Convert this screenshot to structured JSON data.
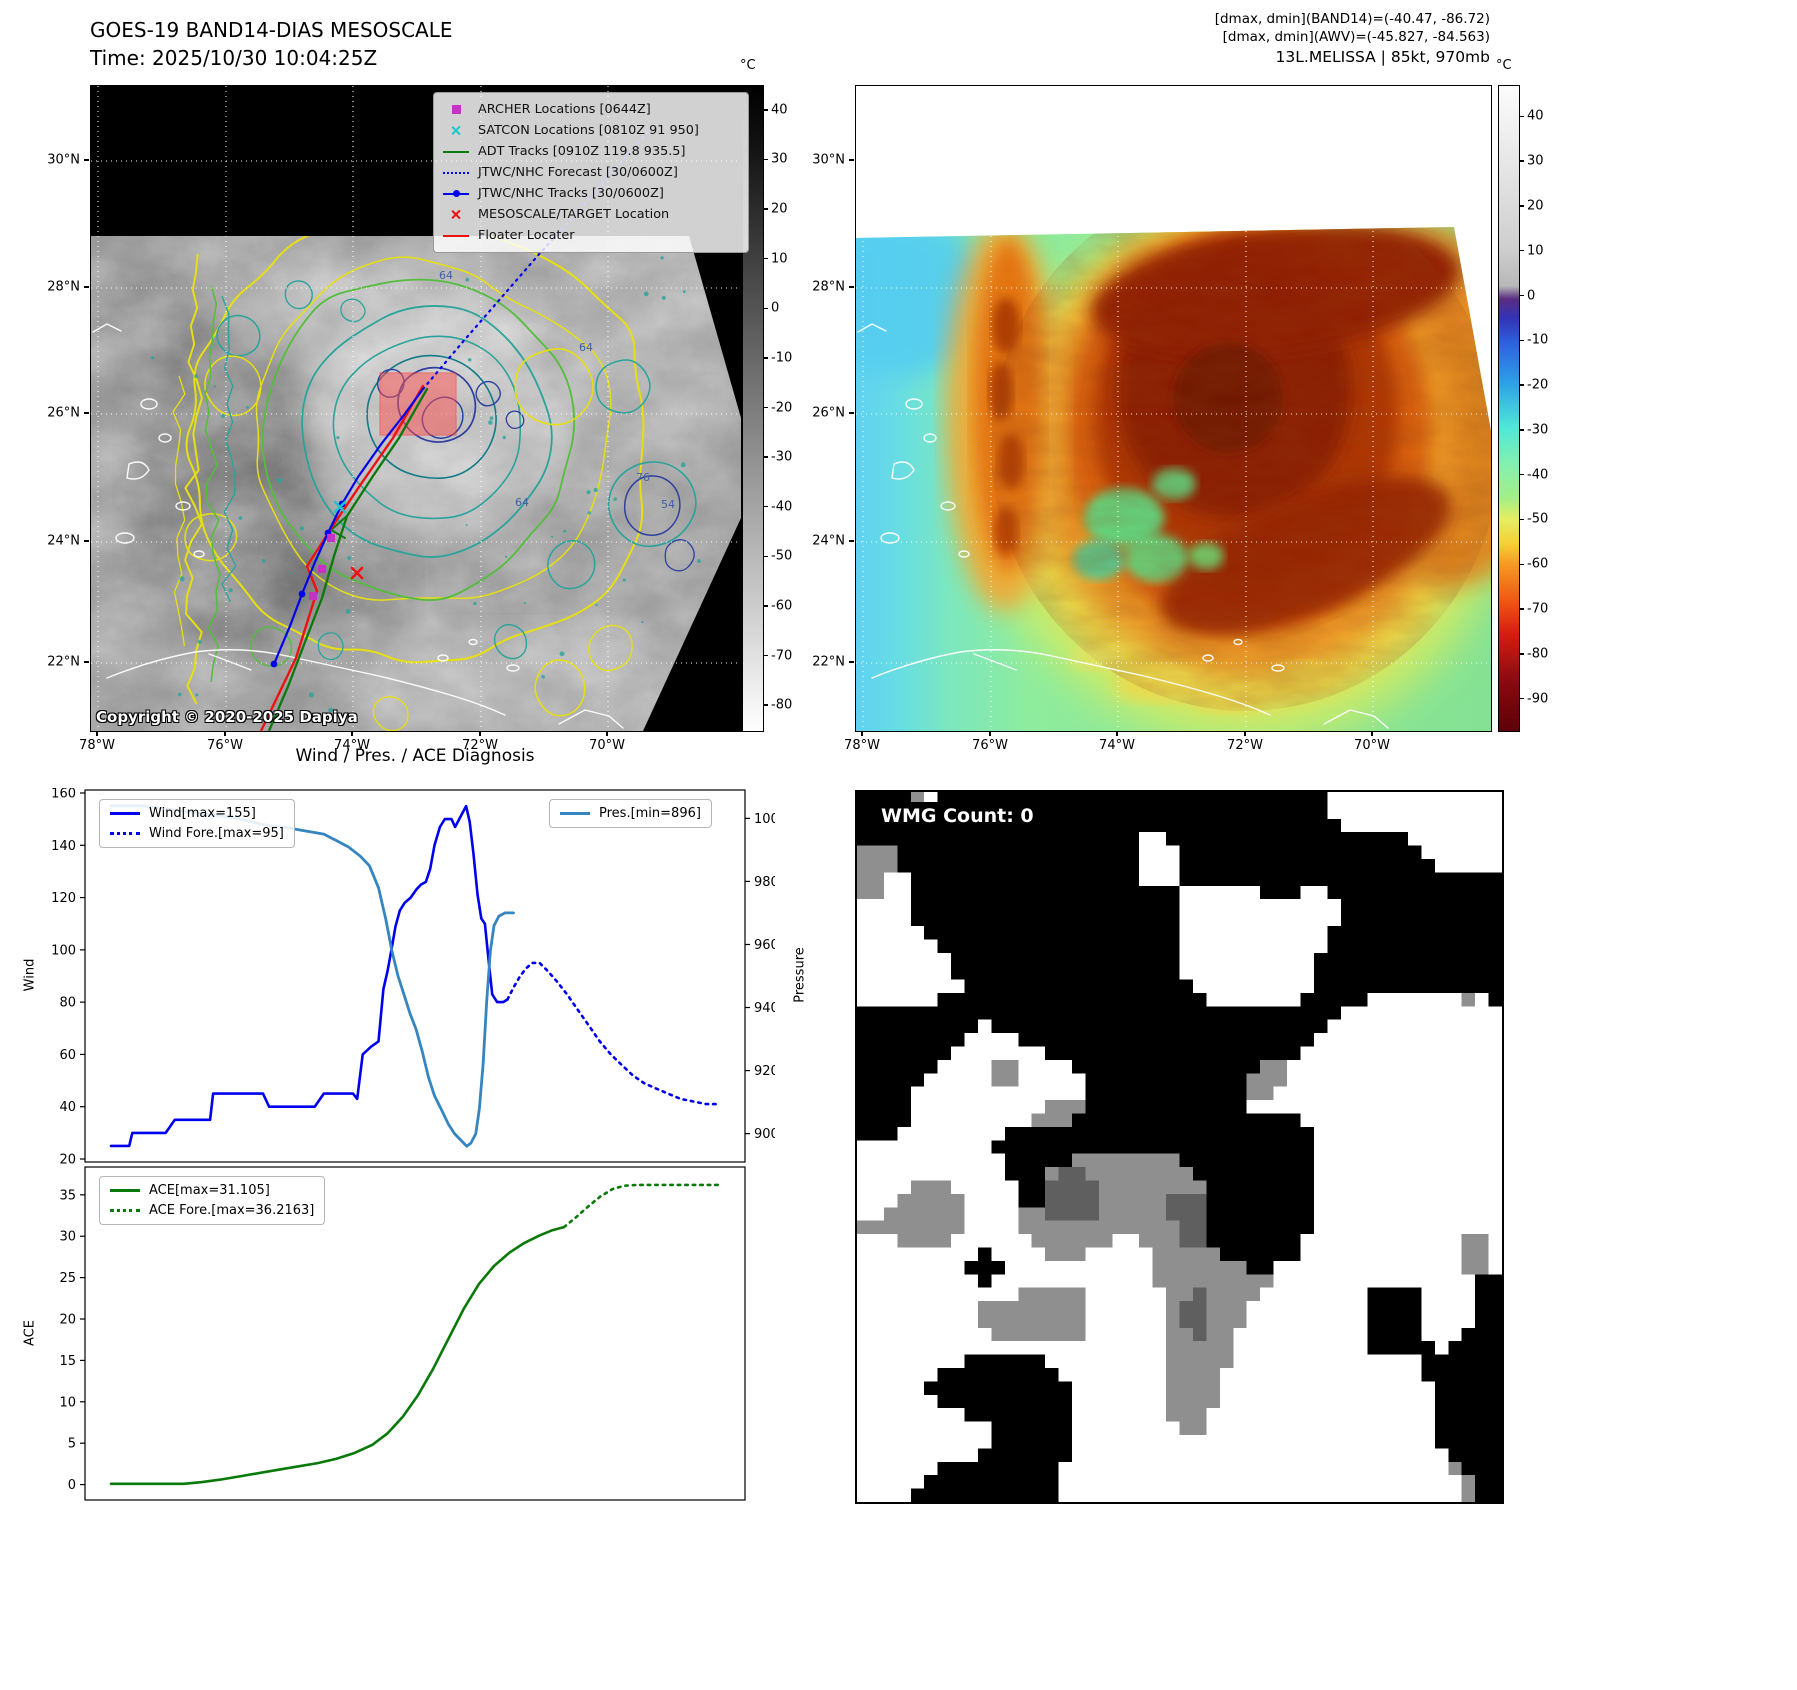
{
  "header": {
    "title_line1": "GOES-19 BAND14-DIAS MESOSCALE",
    "title_line2": "Time: 2025/10/30 10:04:25Z",
    "info_line1": "[dmax, dmin](BAND14)=(-40.47, -86.72)",
    "info_line2": "[dmax, dmin](AWV)=(-45.827, -84.563)",
    "info_line3": "13L.MELISSA | 85kt, 970mb"
  },
  "band14_map": {
    "copyright": "Copyright © 2020-2025 Dapiya",
    "x_ticks": [
      "78°W",
      "76°W",
      "74°W",
      "72°W",
      "70°W"
    ],
    "y_ticks": [
      "30°N",
      "28°N",
      "26°N",
      "24°N",
      "22°N"
    ],
    "legend": [
      {
        "label": "ARCHER Locations [0644Z]",
        "color": "#c433c4"
      },
      {
        "label": "SATCON Locations [0810Z 91 950]",
        "color": "#19c8c8"
      },
      {
        "label": "ADT Tracks [0910Z 119.8 935.5]",
        "color": "#0b7a0b"
      },
      {
        "label": "JTWC/NHC Forecast [30/0600Z]",
        "color": "#0000ee"
      },
      {
        "label": "JTWC/NHC Tracks [30/0600Z]",
        "color": "#0000ee"
      },
      {
        "label": "MESOSCALE/TARGET Location",
        "color": "#ee1111"
      },
      {
        "label": "Floater Locater",
        "color": "#ee1111"
      }
    ],
    "contour_labels": [
      "64",
      "64",
      "64",
      "76",
      "54"
    ],
    "colorbar": {
      "unit": "°C",
      "vmin": -85,
      "vmax": 45,
      "ticks": [
        40,
        30,
        20,
        10,
        0,
        -10,
        -20,
        -30,
        -40,
        -50,
        -60,
        -70,
        -80
      ],
      "stops": [
        [
          0,
          "#000000"
        ],
        [
          10,
          "#141414"
        ],
        [
          100,
          "#ffffff"
        ]
      ]
    }
  },
  "awv_map": {
    "x_ticks": [
      "78°W",
      "76°W",
      "74°W",
      "72°W",
      "70°W"
    ],
    "y_ticks": [
      "30°N",
      "28°N",
      "26°N",
      "24°N",
      "22°N"
    ],
    "colorbar": {
      "unit": "°C",
      "vmin": -97,
      "vmax": 47,
      "ticks": [
        40,
        30,
        20,
        10,
        0,
        -10,
        -20,
        -30,
        -40,
        -50,
        -60,
        -70,
        -80,
        -90
      ],
      "stops": [
        [
          0,
          "#fcfcfc"
        ],
        [
          25,
          "#cfcfcf"
        ],
        [
          31,
          "#b8b8b8"
        ],
        [
          33,
          "#5a2d82"
        ],
        [
          36,
          "#3333b8"
        ],
        [
          40,
          "#2d62e0"
        ],
        [
          46,
          "#2da0e8"
        ],
        [
          53,
          "#4fe8d8"
        ],
        [
          58,
          "#7df0b4"
        ],
        [
          64,
          "#a5ef85"
        ],
        [
          67,
          "#e3ef62"
        ],
        [
          71,
          "#f6cf35"
        ],
        [
          74,
          "#f79b22"
        ],
        [
          80,
          "#ef5512"
        ],
        [
          85,
          "#d51d10"
        ],
        [
          92,
          "#8d0a10"
        ],
        [
          100,
          "#5e0008"
        ]
      ]
    }
  },
  "wmg": {
    "label": "WMG Count: 0",
    "count": 0,
    "cols": 48,
    "rows": 53,
    "seed_shape": 11,
    "seed_gray": 29,
    "colors": {
      "white": "#ffffff",
      "black": "#000000",
      "gray": "#8f8f8f",
      "dark_gray": "#5f5f5f"
    }
  },
  "chart_data": [
    {
      "type": "line",
      "title": "Wind / Pres. / ACE Diagnosis",
      "ylabel": "Wind",
      "y2label": "Pressure",
      "ylim": [
        20,
        160
      ],
      "yticks": [
        20,
        40,
        60,
        80,
        100,
        120,
        140,
        160
      ],
      "y2lim": [
        891,
        1009
      ],
      "y2ticks": [
        900,
        920,
        940,
        960,
        980,
        1000
      ],
      "grid": false,
      "legend_position": "upper-left-and-upper-right",
      "series": [
        {
          "name": "Wind[max=155]",
          "axis": "left",
          "style": "solid",
          "color": "#0000ee",
          "points": [
            [
              0.0,
              25
            ],
            [
              0.03,
              25
            ],
            [
              0.035,
              30
            ],
            [
              0.08,
              30
            ],
            [
              0.09,
              30
            ],
            [
              0.105,
              35
            ],
            [
              0.155,
              35
            ],
            [
              0.163,
              35
            ],
            [
              0.168,
              45
            ],
            [
              0.25,
              45
            ],
            [
              0.26,
              40
            ],
            [
              0.335,
              40
            ],
            [
              0.35,
              45
            ],
            [
              0.398,
              45
            ],
            [
              0.405,
              43
            ],
            [
              0.414,
              60
            ],
            [
              0.428,
              63
            ],
            [
              0.44,
              65
            ],
            [
              0.448,
              85
            ],
            [
              0.455,
              92
            ],
            [
              0.462,
              101
            ],
            [
              0.468,
              109
            ],
            [
              0.475,
              115
            ],
            [
              0.483,
              118
            ],
            [
              0.493,
              120
            ],
            [
              0.502,
              123
            ],
            [
              0.51,
              125
            ],
            [
              0.518,
              126
            ],
            [
              0.525,
              131
            ],
            [
              0.532,
              140
            ],
            [
              0.541,
              147
            ],
            [
              0.549,
              150
            ],
            [
              0.56,
              150
            ],
            [
              0.566,
              147
            ],
            [
              0.575,
              151
            ],
            [
              0.584,
              155
            ],
            [
              0.59,
              149
            ],
            [
              0.596,
              137
            ],
            [
              0.603,
              121
            ],
            [
              0.609,
              112
            ],
            [
              0.615,
              110
            ],
            [
              0.621,
              96
            ],
            [
              0.627,
              83
            ],
            [
              0.635,
              80
            ],
            [
              0.645,
              80
            ],
            [
              0.652,
              81
            ]
          ]
        },
        {
          "name": "Wind Fore.[max=95]",
          "axis": "left",
          "style": "dotted",
          "color": "#0000ee",
          "points": [
            [
              0.652,
              81
            ],
            [
              0.663,
              86
            ],
            [
              0.673,
              90
            ],
            [
              0.683,
              93
            ],
            [
              0.693,
              95
            ],
            [
              0.705,
              95
            ],
            [
              0.718,
              92
            ],
            [
              0.733,
              88
            ],
            [
              0.75,
              83
            ],
            [
              0.768,
              77
            ],
            [
              0.786,
              71
            ],
            [
              0.804,
              65
            ],
            [
              0.822,
              60
            ],
            [
              0.84,
              56
            ],
            [
              0.858,
              52
            ],
            [
              0.877,
              49
            ],
            [
              0.896,
              47
            ],
            [
              0.916,
              45
            ],
            [
              0.937,
              43
            ],
            [
              0.958,
              42
            ],
            [
              0.979,
              41
            ],
            [
              1.0,
              41
            ]
          ]
        },
        {
          "name": "Pres.[min=896]",
          "axis": "right",
          "style": "solid",
          "color": "#3585c0",
          "points": [
            [
              0.0,
              1004
            ],
            [
              0.05,
              1004
            ],
            [
              0.09,
              1003
            ],
            [
              0.13,
              1002
            ],
            [
              0.17,
              1001
            ],
            [
              0.21,
              1000
            ],
            [
              0.25,
              998
            ],
            [
              0.29,
              997
            ],
            [
              0.32,
              996
            ],
            [
              0.35,
              995
            ],
            [
              0.37,
              993
            ],
            [
              0.39,
              991
            ],
            [
              0.41,
              988
            ],
            [
              0.425,
              985
            ],
            [
              0.44,
              978
            ],
            [
              0.452,
              968
            ],
            [
              0.462,
              958
            ],
            [
              0.472,
              950
            ],
            [
              0.482,
              944
            ],
            [
              0.492,
              938
            ],
            [
              0.502,
              933
            ],
            [
              0.512,
              926
            ],
            [
              0.522,
              918
            ],
            [
              0.532,
              912
            ],
            [
              0.545,
              907
            ],
            [
              0.555,
              903
            ],
            [
              0.565,
              900
            ],
            [
              0.575,
              898
            ],
            [
              0.585,
              896
            ],
            [
              0.592,
              897
            ],
            [
              0.6,
              900
            ],
            [
              0.606,
              908
            ],
            [
              0.612,
              922
            ],
            [
              0.618,
              942
            ],
            [
              0.624,
              958
            ],
            [
              0.63,
              966
            ],
            [
              0.638,
              969
            ],
            [
              0.648,
              970
            ],
            [
              0.662,
              970
            ]
          ]
        }
      ]
    },
    {
      "type": "line",
      "ylabel": "ACE",
      "ylim": [
        -1.5,
        38
      ],
      "yticks": [
        0,
        5,
        10,
        15,
        20,
        25,
        30,
        35
      ],
      "grid": false,
      "legend_position": "upper-left",
      "series": [
        {
          "name": "ACE[max=31.105]",
          "axis": "left",
          "style": "solid",
          "color": "#097a09",
          "points": [
            [
              0.0,
              0.1
            ],
            [
              0.06,
              0.1
            ],
            [
              0.12,
              0.1
            ],
            [
              0.15,
              0.3
            ],
            [
              0.18,
              0.6
            ],
            [
              0.22,
              1.1
            ],
            [
              0.26,
              1.6
            ],
            [
              0.3,
              2.1
            ],
            [
              0.34,
              2.6
            ],
            [
              0.37,
              3.1
            ],
            [
              0.4,
              3.8
            ],
            [
              0.43,
              4.8
            ],
            [
              0.455,
              6.2
            ],
            [
              0.48,
              8.2
            ],
            [
              0.505,
              10.8
            ],
            [
              0.53,
              14.0
            ],
            [
              0.555,
              17.6
            ],
            [
              0.58,
              21.2
            ],
            [
              0.605,
              24.2
            ],
            [
              0.63,
              26.4
            ],
            [
              0.655,
              28.0
            ],
            [
              0.68,
              29.2
            ],
            [
              0.705,
              30.1
            ],
            [
              0.725,
              30.7
            ],
            [
              0.745,
              31.1
            ]
          ]
        },
        {
          "name": "ACE Fore.[max=36.2163]",
          "axis": "left",
          "style": "dotted",
          "color": "#097a09",
          "points": [
            [
              0.745,
              31.1
            ],
            [
              0.765,
              32.3
            ],
            [
              0.785,
              33.6
            ],
            [
              0.805,
              34.8
            ],
            [
              0.825,
              35.7
            ],
            [
              0.845,
              36.1
            ],
            [
              0.865,
              36.2
            ],
            [
              0.9,
              36.2
            ],
            [
              0.95,
              36.2
            ],
            [
              1.0,
              36.2
            ]
          ]
        }
      ]
    }
  ]
}
